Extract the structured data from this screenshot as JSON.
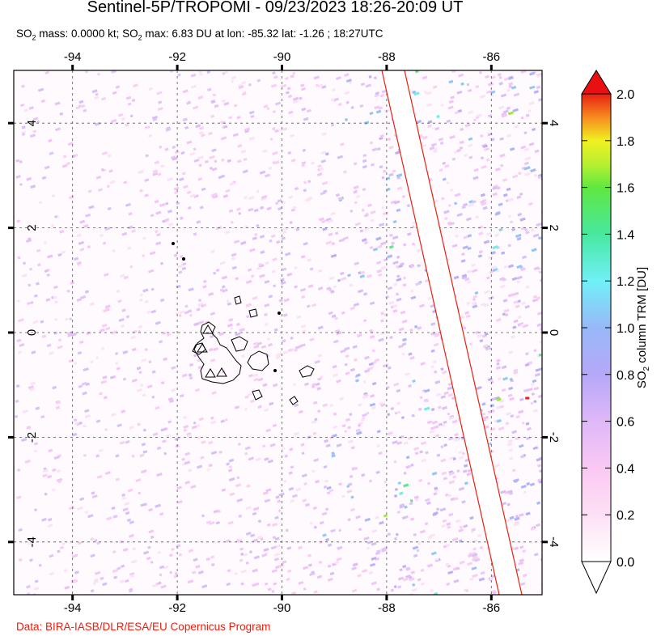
{
  "title": "Sentinel-5P/TROPOMI - 09/23/2023 18:26-20:09 UT",
  "subtitle": {
    "prefix": "SO",
    "sub1": "2",
    "mid": " mass: 0.0000 kt; SO",
    "sub2": "2",
    "suffix": " max: 6.83 DU at lon: -85.32 lat: -1.26 ; 18:27UTC"
  },
  "credit": "Data: BIRA-IASB/DLR/ESA/EU Copernicus Program",
  "map": {
    "lon_range": [
      -95,
      -85
    ],
    "lat_range": [
      -5,
      5
    ],
    "lon_ticks": [
      -94,
      -92,
      -90,
      -88,
      -86
    ],
    "lat_ticks": [
      4,
      2,
      0,
      -2,
      -4
    ],
    "lon_tick_labels": [
      "-94",
      "-92",
      "-90",
      "-88",
      "-86"
    ],
    "lat_tick_labels": [
      "4",
      "2",
      "0",
      "-2",
      "-4"
    ],
    "grid": "dashed",
    "swath_gap_color": "#e8210f",
    "max_marker": {
      "lon": -85.32,
      "lat": -1.26,
      "color": "#e8210f"
    }
  },
  "colorbar": {
    "label_prefix": "SO",
    "label_sub": "2",
    "label_suffix": " column TRM [DU]",
    "ticks": [
      "2.0",
      "1.8",
      "1.6",
      "1.4",
      "1.2",
      "1.0",
      "0.8",
      "0.6",
      "0.4",
      "0.2",
      "0.0"
    ],
    "range": [
      0,
      2
    ],
    "colors": [
      "#ffffff",
      "#fcd3f3",
      "#d7b8f8",
      "#a9a9f8",
      "#88b8f8",
      "#6ef8f8",
      "#44f0a0",
      "#44e844",
      "#a8f030",
      "#f0f020",
      "#f8a020",
      "#f85010",
      "#e81010"
    ]
  }
}
